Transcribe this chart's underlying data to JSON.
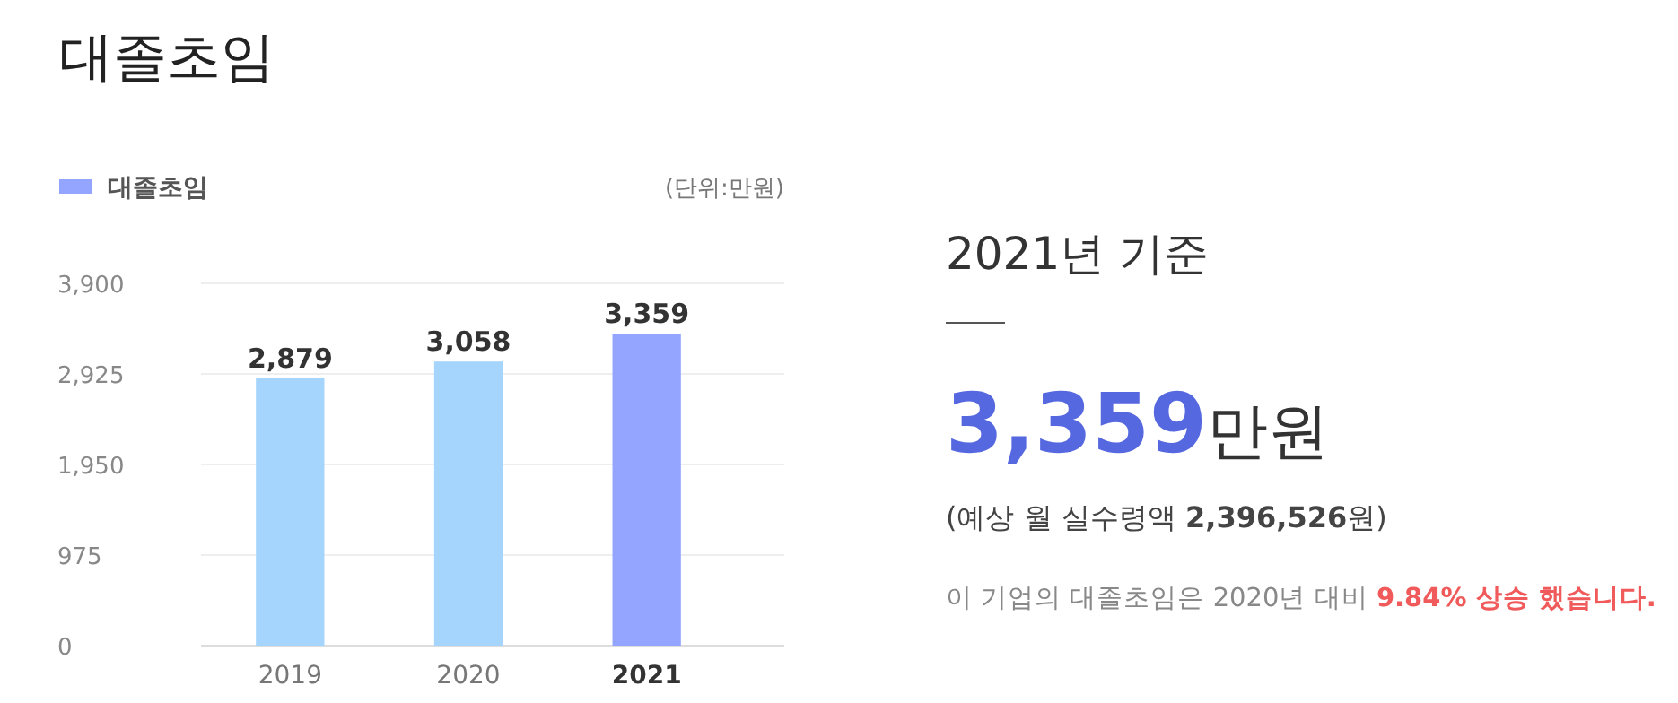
{
  "chart_data": [
    {
      "type": "bar",
      "title": "대졸초임",
      "categories": [
        "2019",
        "2020",
        "2021"
      ],
      "series": [
        {
          "name": "대졸초임",
          "color": "#94a5ff",
          "colors": [
            "#a5d4fc",
            "#a5d4fc",
            "#94a5ff"
          ],
          "values": [
            2879,
            3058,
            3359
          ],
          "value_labels": [
            "2,879",
            "3,058",
            "3,359"
          ]
        }
      ],
      "ylim": [
        0,
        3900
      ],
      "yticks": [
        0,
        {
          "value": 975,
          "label": "975"
        },
        {
          "value": 1950,
          "label": "1,950"
        },
        {
          "value": 2925,
          "label": "2,925"
        },
        {
          "value": 3900,
          "label": "3,900"
        }
      ],
      "grid": "y",
      "legend": "top left",
      "annotations": [
        "(단위:만원)"
      ]
    },
    {
      "type": "other",
      "title": "2021년 기준",
      "annotations": [
        "3,359만원",
        "(예상 월 실수령액 2,396,526원)",
        "이 기업의 대졸초임은 2020년 대비 9.84% 상승 했습니다."
      ]
    }
  ]
}
